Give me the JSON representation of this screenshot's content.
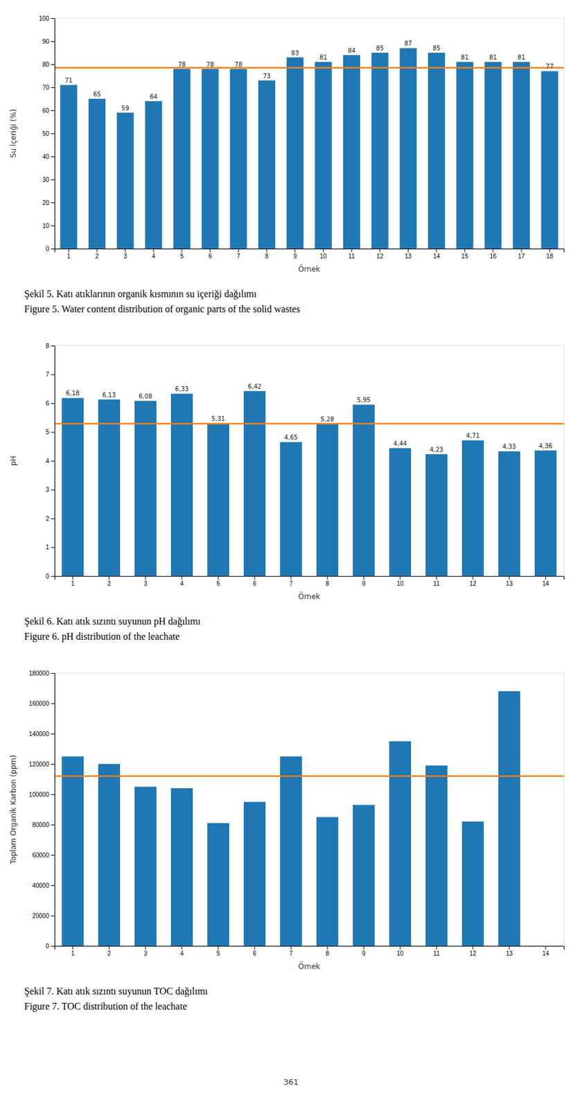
{
  "chart_data": [
    {
      "type": "bar",
      "title": "Şekil 5. Katı atıklarının organik kısmının su içeriği dağılımı",
      "subtitle": "Figure 5. Water content distribution of organic parts of the solid wastes",
      "xlabel": "Örnek",
      "ylabel": "Su İçeriği (%)",
      "categories": [
        "1",
        "2",
        "3",
        "4",
        "5",
        "6",
        "7",
        "8",
        "9",
        "10",
        "11",
        "12",
        "13",
        "14",
        "15",
        "16",
        "17",
        "18"
      ],
      "values": [
        71,
        65,
        59,
        64,
        78,
        78,
        78,
        73,
        83,
        81,
        84,
        85,
        87,
        85,
        81,
        81,
        81,
        77
      ],
      "data_labels": true,
      "mean_line": 78.5,
      "ylim": [
        0,
        100
      ],
      "yticks": [
        0,
        10,
        20,
        30,
        40,
        50,
        60,
        70,
        80,
        90,
        100
      ],
      "grid": false
    },
    {
      "type": "bar",
      "title": "Şekil 6. Katı atık sızıntı suyunun pH dağılımı",
      "subtitle": "Figure 6. pH distribution of the leachate",
      "xlabel": "Örnek",
      "ylabel": "pH",
      "categories": [
        "1",
        "2",
        "3",
        "4",
        "5",
        "6",
        "7",
        "8",
        "9",
        "10",
        "11",
        "12",
        "13",
        "14"
      ],
      "values": [
        6.18,
        6.13,
        6.08,
        6.33,
        5.31,
        6.42,
        4.65,
        5.28,
        5.95,
        4.44,
        4.23,
        4.71,
        4.33,
        4.36
      ],
      "value_labels": [
        "6,18",
        "6,13",
        "6,08",
        "6,33",
        "5,31",
        "6,42",
        "4,65",
        "5,28",
        "5,95",
        "4,44",
        "4,23",
        "4,71",
        "4,33",
        "4,36"
      ],
      "data_labels": true,
      "mean_line": 5.29,
      "ylim": [
        0,
        8
      ],
      "yticks": [
        0,
        1,
        2,
        3,
        4,
        5,
        6,
        7,
        8
      ],
      "grid": false
    },
    {
      "type": "bar",
      "title": "Şekil 7. Katı atık sızıntı suyunun TOC dağılımı",
      "subtitle": "Figure 7. TOC distribution of the leachate",
      "xlabel": "Örnek",
      "ylabel": "Toplam Organik Karbon (ppm)",
      "categories": [
        "1",
        "2",
        "3",
        "4",
        "5",
        "6",
        "7",
        "8",
        "9",
        "10",
        "11",
        "12",
        "13",
        "14"
      ],
      "values": [
        125000,
        120000,
        105000,
        104000,
        81000,
        95000,
        125000,
        85000,
        93000,
        135000,
        119000,
        82000,
        168000,
        0
      ],
      "data_labels": false,
      "mean_line": 112000,
      "ylim": [
        0,
        180000
      ],
      "yticks": [
        0,
        20000,
        40000,
        60000,
        80000,
        100000,
        120000,
        140000,
        160000,
        180000
      ],
      "grid": false,
      "annotations": [
        "361"
      ]
    }
  ]
}
